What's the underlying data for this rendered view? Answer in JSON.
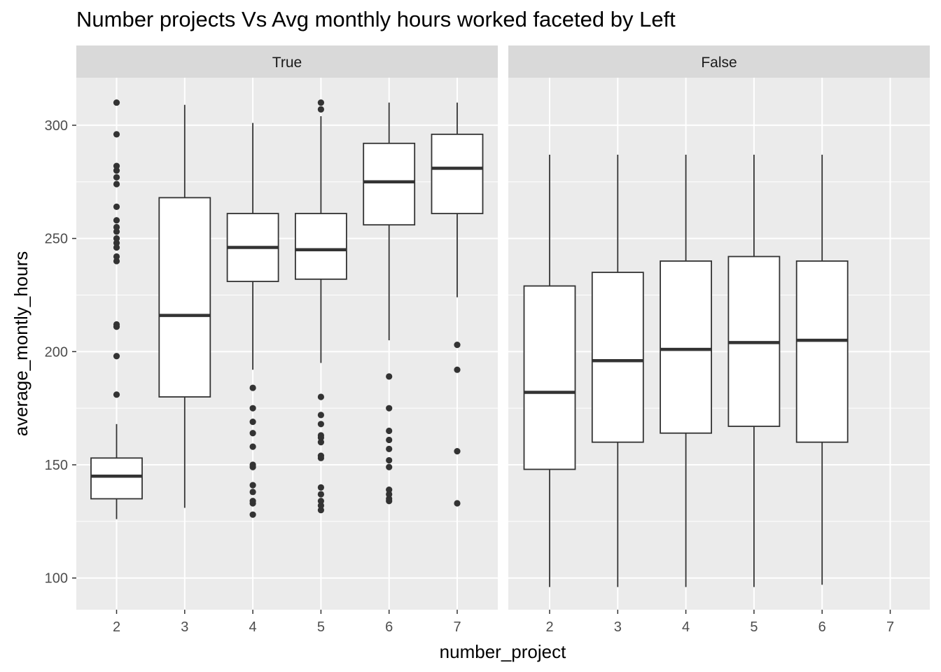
{
  "chart_data": {
    "type": "boxplot",
    "title": "Number projects Vs Avg monthly hours worked faceted by Left",
    "xlabel": "number_project",
    "ylabel": "average_montly_hours",
    "x_categories": [
      "2",
      "3",
      "4",
      "5",
      "6",
      "7"
    ],
    "yticks": [
      100,
      150,
      200,
      250,
      300
    ],
    "ylim": [
      86,
      321
    ],
    "grid": true,
    "facets": [
      {
        "label": "True",
        "boxes": [
          {
            "x": "2",
            "whisker_low": 126,
            "q1": 135,
            "median": 145,
            "q3": 153,
            "whisker_high": 168,
            "outliers": [
              181,
              198,
              211,
              212,
              240,
              242,
              246,
              248,
              250,
              253,
              255,
              258,
              264,
              274,
              277,
              280,
              282,
              296,
              310
            ]
          },
          {
            "x": "3",
            "whisker_low": 131,
            "q1": 180,
            "median": 216,
            "q3": 268,
            "whisker_high": 309,
            "outliers": []
          },
          {
            "x": "4",
            "whisker_low": 192,
            "q1": 231,
            "median": 246,
            "q3": 261,
            "whisker_high": 301,
            "outliers": [
              128,
              133,
              134,
              138,
              141,
              149,
              150,
              158,
              164,
              169,
              175,
              184
            ]
          },
          {
            "x": "5",
            "whisker_low": 195,
            "q1": 232,
            "median": 245,
            "q3": 261,
            "whisker_high": 304,
            "outliers": [
              130,
              132,
              134,
              137,
              140,
              153,
              154,
              160,
              162,
              163,
              168,
              172,
              180,
              307,
              310
            ]
          },
          {
            "x": "6",
            "whisker_low": 205,
            "q1": 256,
            "median": 275,
            "q3": 292,
            "whisker_high": 310,
            "outliers": [
              134,
              135,
              137,
              139,
              149,
              152,
              157,
              161,
              165,
              175,
              189
            ]
          },
          {
            "x": "7",
            "whisker_low": 224,
            "q1": 261,
            "median": 281,
            "q3": 296,
            "whisker_high": 310,
            "outliers": [
              133,
              156,
              192,
              203
            ]
          }
        ]
      },
      {
        "label": "False",
        "boxes": [
          {
            "x": "2",
            "whisker_low": 96,
            "q1": 148,
            "median": 182,
            "q3": 229,
            "whisker_high": 287,
            "outliers": []
          },
          {
            "x": "3",
            "whisker_low": 96,
            "q1": 160,
            "median": 196,
            "q3": 235,
            "whisker_high": 287,
            "outliers": []
          },
          {
            "x": "4",
            "whisker_low": 96,
            "q1": 164,
            "median": 201,
            "q3": 240,
            "whisker_high": 287,
            "outliers": []
          },
          {
            "x": "5",
            "whisker_low": 96,
            "q1": 167,
            "median": 204,
            "q3": 242,
            "whisker_high": 287,
            "outliers": []
          },
          {
            "x": "6",
            "whisker_low": 97,
            "q1": 160,
            "median": 205,
            "q3": 240,
            "whisker_high": 287,
            "outliers": []
          }
        ]
      }
    ]
  }
}
